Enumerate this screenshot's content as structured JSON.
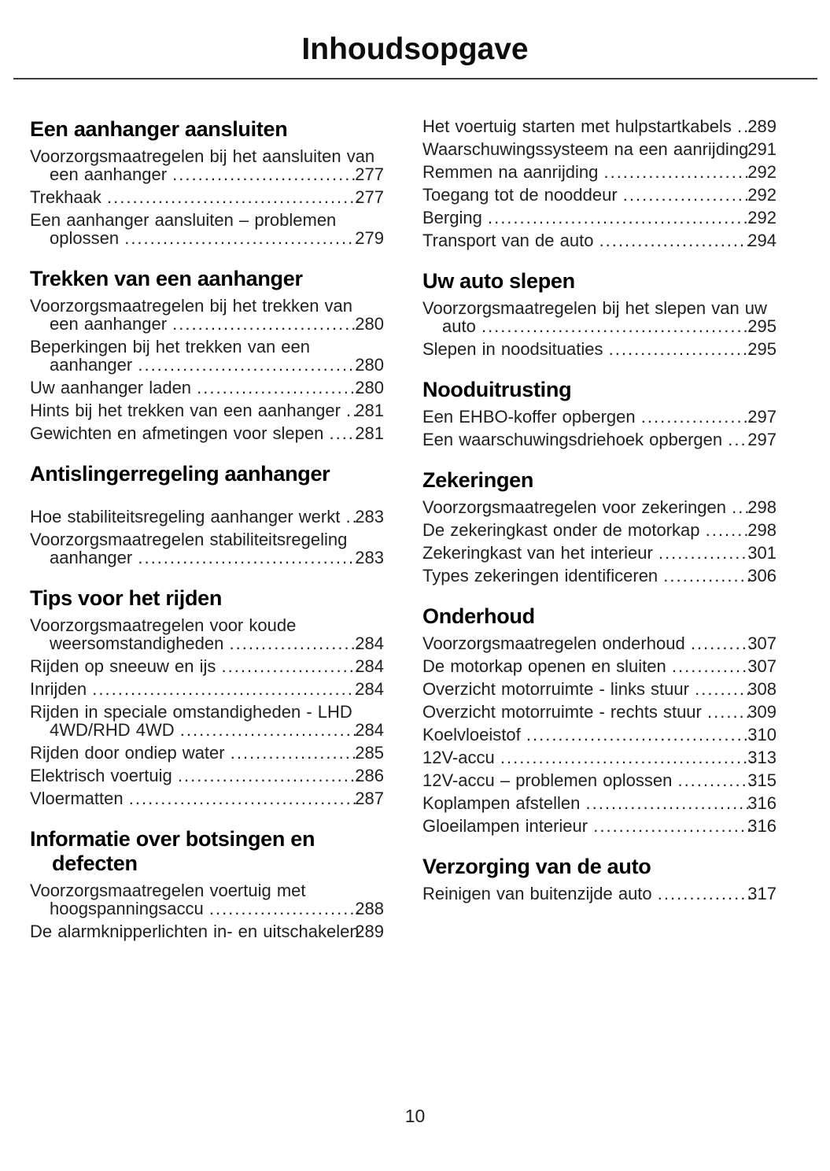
{
  "page": {
    "title": "Inhoudsopgave",
    "page_number": "10"
  },
  "colors": {
    "background": "#ffffff",
    "body_text": "#1f1f1f",
    "heading_text": "#000000",
    "rule": "#3d3d3d"
  },
  "columns": [
    {
      "sections": [
        {
          "heading": "Een aanhanger aansluiten",
          "entries": [
            {
              "label": "Voorzorgsmaatregelen bij het aansluiten van een aanhanger",
              "page": "277"
            },
            {
              "label": "Trekhaak",
              "page": "277"
            },
            {
              "label": "Een aanhanger aansluiten – problemen oplossen",
              "page": "279"
            }
          ]
        },
        {
          "heading": "Trekken van een aanhanger",
          "entries": [
            {
              "label": "Voorzorgsmaatregelen bij het trekken van een aanhanger",
              "page": "280"
            },
            {
              "label": "Beperkingen bij het trekken van een aanhanger",
              "page": "280"
            },
            {
              "label": "Uw aanhanger laden",
              "page": "280"
            },
            {
              "label": "Hints bij het trekken van een aanhanger",
              "page": "281"
            },
            {
              "label": "Gewichten en afmetingen voor slepen",
              "page": "281"
            }
          ]
        },
        {
          "heading": "Antislingerregeling aanhanger",
          "extra_gap": true,
          "entries": [
            {
              "label": "Hoe stabiliteitsregeling aanhanger werkt",
              "page": "283"
            },
            {
              "label": "Voorzorgsmaatregelen stabiliteitsregeling aanhanger",
              "page": "283"
            }
          ]
        },
        {
          "heading": "Tips voor het rijden",
          "entries": [
            {
              "label": "Voorzorgsmaatregelen voor koude weersomstandigheden",
              "page": "284"
            },
            {
              "label": "Rijden op sneeuw en ijs",
              "page": "284"
            },
            {
              "label": "Inrijden",
              "page": "284"
            },
            {
              "label": "Rijden in speciale omstandigheden - LHD 4WD/RHD 4WD",
              "page": "284"
            },
            {
              "label": "Rijden door ondiep water",
              "page": "285"
            },
            {
              "label": "Elektrisch voertuig",
              "page": "286"
            },
            {
              "label": "Vloermatten",
              "page": "287"
            }
          ]
        },
        {
          "heading": "Informatie over botsingen en defecten",
          "entries": [
            {
              "label": "Voorzorgsmaatregelen voertuig met hoogspanningsaccu",
              "page": "288"
            },
            {
              "label": "De alarmknipperlichten in- en uitschakelen",
              "page": "289"
            }
          ]
        }
      ]
    },
    {
      "sections": [
        {
          "heading": "",
          "entries": [
            {
              "label": "Het voertuig starten met hulpstartkabels",
              "page": "289"
            },
            {
              "label": "Waarschuwingssysteem na een aanrijding",
              "page": "291"
            },
            {
              "label": "Remmen na aanrijding",
              "page": "292"
            },
            {
              "label": "Toegang tot de nooddeur",
              "page": "292"
            },
            {
              "label": "Berging",
              "page": "292"
            },
            {
              "label": "Transport van de auto",
              "page": "294"
            }
          ]
        },
        {
          "heading": "Uw auto slepen",
          "entries": [
            {
              "label": "Voorzorgsmaatregelen bij het slepen van uw auto",
              "page": "295"
            },
            {
              "label": "Slepen in noodsituaties",
              "page": "295"
            }
          ]
        },
        {
          "heading": "Nooduitrusting",
          "entries": [
            {
              "label": "Een EHBO-koffer opbergen",
              "page": "297"
            },
            {
              "label": "Een waarschuwingsdriehoek opbergen",
              "page": "297"
            }
          ]
        },
        {
          "heading": "Zekeringen",
          "entries": [
            {
              "label": "Voorzorgsmaatregelen voor zekeringen",
              "page": "298"
            },
            {
              "label": "De zekeringkast onder de motorkap",
              "page": "298"
            },
            {
              "label": "Zekeringkast van het interieur",
              "page": "301"
            },
            {
              "label": "Types zekeringen identificeren",
              "page": "306"
            }
          ]
        },
        {
          "heading": "Onderhoud",
          "entries": [
            {
              "label": "Voorzorgsmaatregelen onderhoud",
              "page": "307"
            },
            {
              "label": "De motorkap openen en sluiten",
              "page": "307"
            },
            {
              "label": "Overzicht motorruimte - links stuur",
              "page": "308"
            },
            {
              "label": "Overzicht motorruimte - rechts stuur",
              "page": "309"
            },
            {
              "label": "Koelvloeistof",
              "page": "310"
            },
            {
              "label": "12V-accu",
              "page": "313"
            },
            {
              "label": "12V-accu – problemen oplossen",
              "page": "315"
            },
            {
              "label": "Koplampen afstellen",
              "page": "316"
            },
            {
              "label": "Gloeilampen interieur",
              "page": "316"
            }
          ]
        },
        {
          "heading": "Verzorging van de auto",
          "entries": [
            {
              "label": "Reinigen van buitenzijde auto",
              "page": "317"
            }
          ]
        }
      ]
    }
  ]
}
